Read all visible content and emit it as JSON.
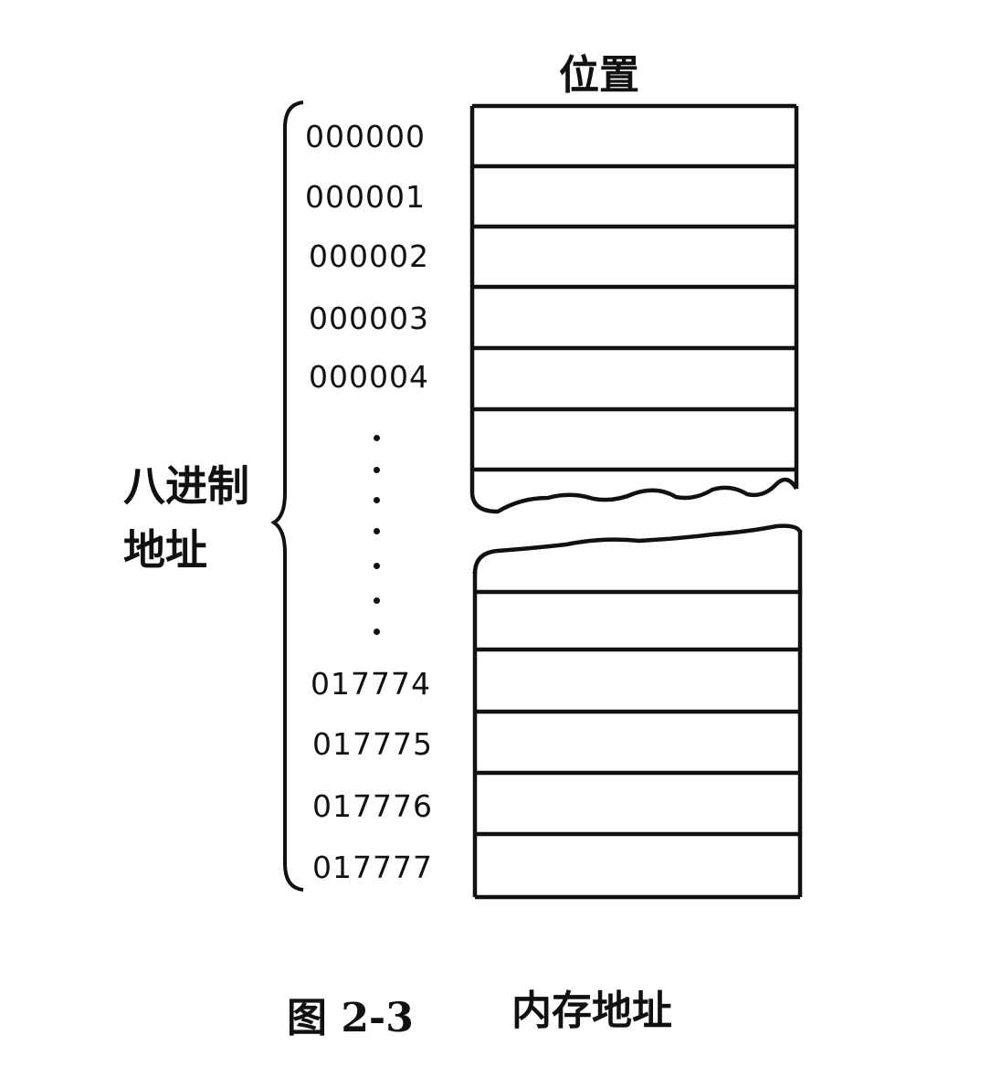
{
  "diagram": {
    "column_header": "位置",
    "side_label_line1": "八进制",
    "side_label_line2": "地址",
    "addresses_top": [
      "000000",
      "000001",
      "000002",
      "000003",
      "000004"
    ],
    "addresses_bottom": [
      "017774",
      "017775",
      "017776",
      "017777"
    ],
    "figure_number": "图 2-3",
    "caption": "内存地址"
  }
}
